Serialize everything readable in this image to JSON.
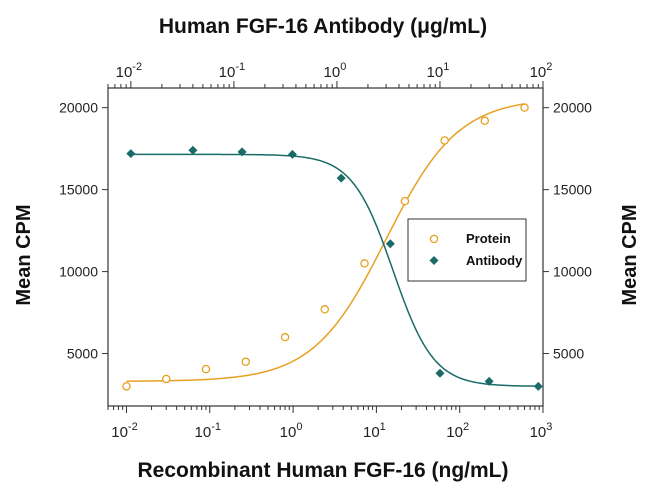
{
  "chart_data": {
    "type": "scatter",
    "top_title": "Human FGF-16 Antibody (μg/mL)",
    "bottom_title": "Recombinant Human FGF-16 (ng/mL)",
    "ylabel_left": "Mean CPM",
    "ylabel_right": "Mean CPM",
    "x_scale": "log",
    "xlim_bottom": [
      0.006,
      1000
    ],
    "xlim_top": [
      0.006,
      100
    ],
    "ylim": [
      1800,
      21200
    ],
    "y_ticks": [
      5000,
      10000,
      15000,
      20000
    ],
    "x_ticks_bottom": [
      {
        "value": 0.01,
        "base": "10",
        "exp": "-2"
      },
      {
        "value": 0.1,
        "base": "10",
        "exp": "-1"
      },
      {
        "value": 1,
        "base": "10",
        "exp": "0"
      },
      {
        "value": 10,
        "base": "10",
        "exp": "1"
      },
      {
        "value": 100,
        "base": "10",
        "exp": "2"
      },
      {
        "value": 1000,
        "base": "10",
        "exp": "3"
      }
    ],
    "x_ticks_top": [
      {
        "value": 0.01,
        "base": "10",
        "exp": "-2"
      },
      {
        "value": 0.1,
        "base": "10",
        "exp": "-1"
      },
      {
        "value": 1,
        "base": "10",
        "exp": "0"
      },
      {
        "value": 10,
        "base": "10",
        "exp": "1"
      },
      {
        "value": 100,
        "base": "10",
        "exp": "2"
      }
    ],
    "grid": false,
    "legend_position": "right-center",
    "series": [
      {
        "name": "Protein",
        "axis": "bottom",
        "marker": "open-circle",
        "color": "#e8a020",
        "points": [
          [
            0.01,
            3000
          ],
          [
            0.03,
            3450
          ],
          [
            0.09,
            4050
          ],
          [
            0.27,
            4500
          ],
          [
            0.8,
            6000
          ],
          [
            2.4,
            7700
          ],
          [
            7.2,
            10500
          ],
          [
            22,
            14300
          ],
          [
            66,
            18000
          ],
          [
            200,
            19200
          ],
          [
            600,
            20000
          ]
        ],
        "fit": {
          "bottom": 3300,
          "top": 20600,
          "ec50": 13,
          "hill": 1.0
        }
      },
      {
        "name": "Antibody",
        "axis": "top",
        "marker": "filled-diamond",
        "color": "#1a6b68",
        "points": [
          [
            0.01,
            17200
          ],
          [
            0.04,
            17400
          ],
          [
            0.12,
            17300
          ],
          [
            0.37,
            17150
          ],
          [
            1.1,
            15700
          ],
          [
            3.3,
            11700
          ],
          [
            10,
            3800
          ],
          [
            30,
            3300
          ],
          [
            90,
            3000
          ]
        ],
        "fit": {
          "bottom": 3000,
          "top": 17150,
          "ec50": 3.5,
          "hill": 2.2
        }
      }
    ]
  }
}
